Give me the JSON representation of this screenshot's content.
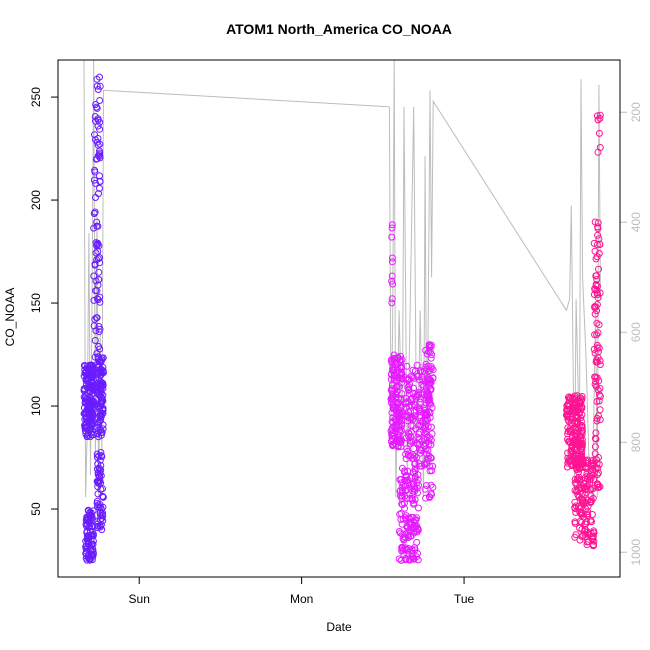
{
  "chart_data": {
    "type": "scatter",
    "title": "ATOM1 North_America CO_NOAA",
    "xlabel": "Date",
    "ylabel": "CO_NOAA",
    "x_ticks": [
      {
        "label": "Sun",
        "t": 1.0
      },
      {
        "label": "Mon",
        "t": 2.0
      },
      {
        "label": "Tue",
        "t": 3.0
      }
    ],
    "xlim": [
      0.5,
      3.96
    ],
    "ylim": [
      17,
      268
    ],
    "y_ticks": [
      50,
      100,
      150,
      200,
      250
    ],
    "y2_ticks": [
      200,
      400,
      600,
      800,
      1000
    ],
    "y2lim": [
      105,
      1045
    ],
    "y2_reversed": true,
    "colors": {
      "series1": "#6a1cff",
      "series2": "#e61cff",
      "series3": "#ff1493",
      "pressure_line": "#bdbdbd",
      "axis": "#000000",
      "right_axis": "#bdbdbd"
    },
    "series": [
      {
        "clusters": [
          {
            "x": [
              0.66,
              0.72
            ],
            "y": [
              85,
              120
            ],
            "n": 180
          },
          {
            "x": [
              0.67,
              0.72
            ],
            "y": [
              25,
              50
            ],
            "n": 90
          },
          {
            "x": [
              0.72,
              0.76
            ],
            "y": [
              120,
              260
            ],
            "n": 90
          },
          {
            "x": [
              0.74,
              0.78
            ],
            "y": [
              40,
              80
            ],
            "n": 60
          },
          {
            "x": [
              0.74,
              0.78
            ],
            "y": [
              85,
              125
            ],
            "n": 100
          }
        ]
      },
      {
        "clusters": [
          {
            "x": [
              2.55,
              2.62
            ],
            "y": [
              80,
              125
            ],
            "n": 160
          },
          {
            "x": [
              2.55,
              2.56
            ],
            "y": [
              150,
              205
            ],
            "n": 10
          },
          {
            "x": [
              2.6,
              2.72
            ],
            "y": [
              25,
              70
            ],
            "n": 150
          },
          {
            "x": [
              2.64,
              2.8
            ],
            "y": [
              70,
              120
            ],
            "n": 170
          },
          {
            "x": [
              2.76,
              2.81
            ],
            "y": [
              55,
              130
            ],
            "n": 70
          }
        ]
      },
      {
        "clusters": [
          {
            "x": [
              3.63,
              3.73
            ],
            "y": [
              70,
              105
            ],
            "n": 190
          },
          {
            "x": [
              3.68,
              3.8
            ],
            "y": [
              32,
              75
            ],
            "n": 150
          },
          {
            "x": [
              3.8,
              3.84
            ],
            "y": [
              60,
              190
            ],
            "n": 90
          },
          {
            "x": [
              3.82,
              3.84
            ],
            "y": [
              220,
              245
            ],
            "n": 8
          }
        ]
      }
    ],
    "pressure_line": [
      [
        0.66,
        105
      ],
      [
        0.67,
        900
      ],
      [
        0.68,
        780
      ],
      [
        0.69,
        420
      ],
      [
        0.7,
        860
      ],
      [
        0.71,
        520
      ],
      [
        0.72,
        105
      ],
      [
        0.73,
        840
      ],
      [
        0.74,
        380
      ],
      [
        0.75,
        900
      ],
      [
        0.76,
        600
      ],
      [
        0.77,
        820
      ],
      [
        0.78,
        160
      ],
      [
        2.54,
        190
      ],
      [
        2.55,
        760
      ],
      [
        2.56,
        600
      ],
      [
        2.57,
        105
      ],
      [
        2.58,
        900
      ],
      [
        2.6,
        560
      ],
      [
        2.62,
        800
      ],
      [
        2.63,
        190
      ],
      [
        2.65,
        860
      ],
      [
        2.67,
        520
      ],
      [
        2.69,
        190
      ],
      [
        2.71,
        880
      ],
      [
        2.73,
        560
      ],
      [
        2.75,
        900
      ],
      [
        2.76,
        280
      ],
      [
        2.77,
        840
      ],
      [
        2.78,
        560
      ],
      [
        2.79,
        160
      ],
      [
        2.8,
        500
      ],
      [
        2.81,
        180
      ],
      [
        3.63,
        560
      ],
      [
        3.65,
        540
      ],
      [
        3.66,
        370
      ],
      [
        3.68,
        880
      ],
      [
        3.69,
        540
      ],
      [
        3.71,
        800
      ],
      [
        3.72,
        140
      ],
      [
        3.73,
        500
      ],
      [
        3.75,
        640
      ],
      [
        3.77,
        840
      ],
      [
        3.79,
        900
      ],
      [
        3.81,
        560
      ],
      [
        3.82,
        900
      ],
      [
        3.83,
        150
      ],
      [
        3.84,
        540
      ]
    ]
  }
}
